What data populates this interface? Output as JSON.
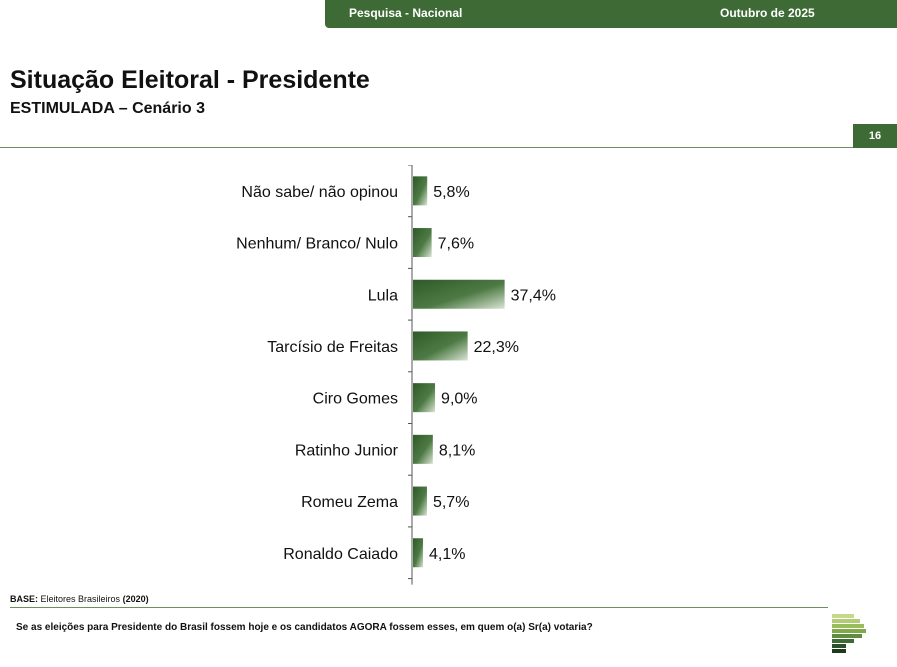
{
  "header": {
    "survey_label": "Pesquisa - Nacional",
    "date_label": "Outubro de 2025"
  },
  "title": "Situação Eleitoral - Presidente",
  "subtitle": "ESTIMULADA – Cenário 3",
  "page_number": "16",
  "footer": {
    "base_label": "BASE:",
    "base_text": "Eleitores Brasileiros",
    "base_count": "(2020)",
    "question": "Se as eleições para Presidente do Brasil fossem hoje e os candidatos AGORA fossem esses, em quem o(a) Sr(a) votaria?"
  },
  "chart_data": {
    "type": "bar",
    "orientation": "horizontal",
    "categories": [
      "Não sabe/ não opinou",
      "Nenhum/ Branco/ Nulo",
      "Lula",
      "Tarcísio de Freitas",
      "Ciro Gomes",
      "Ratinho Junior",
      "Romeu Zema",
      "Ronaldo Caiado"
    ],
    "values": [
      5.8,
      7.6,
      37.4,
      22.3,
      9.0,
      8.1,
      5.7,
      4.1
    ],
    "value_labels": [
      "5,8%",
      "7,6%",
      "37,4%",
      "22,3%",
      "9,0%",
      "8,1%",
      "5,7%",
      "4,1%"
    ],
    "bar_color": "#3e6b35"
  }
}
